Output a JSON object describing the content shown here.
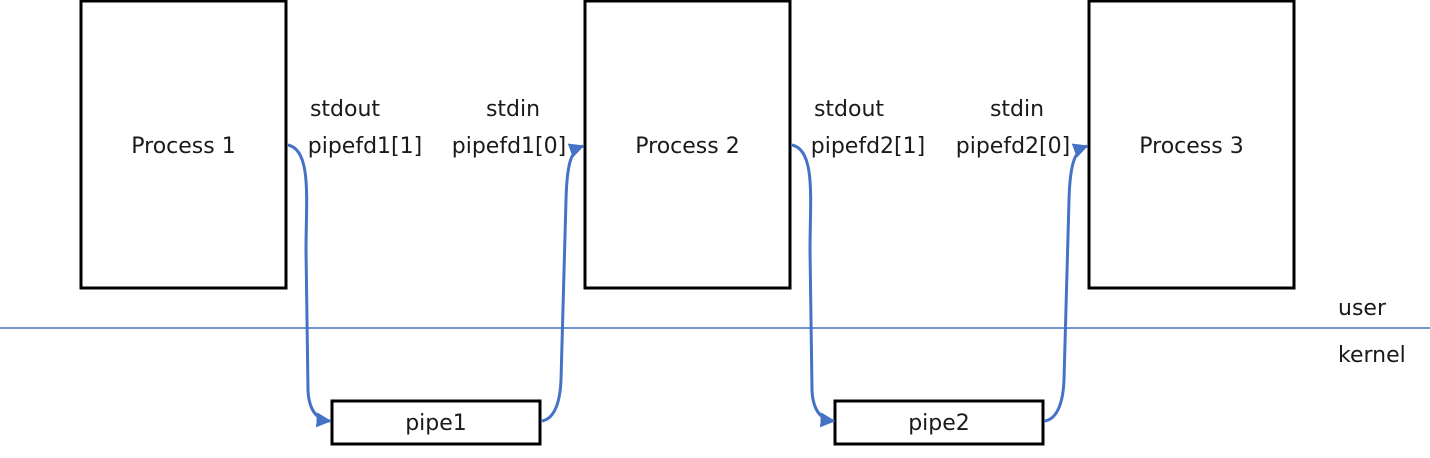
{
  "processes": [
    "Process 1",
    "Process 2",
    "Process 3"
  ],
  "pipes": [
    "pipe1",
    "pipe2"
  ],
  "fd_labels": {
    "pipe1_write_stream": "stdout",
    "pipe1_write_fd": "pipefd1[1]",
    "pipe1_read_stream": "stdin",
    "pipe1_read_fd": "pipefd1[0]",
    "pipe2_write_stream": "stdout",
    "pipe2_write_fd": "pipefd2[1]",
    "pipe2_read_stream": "stdin",
    "pipe2_read_fd": "pipefd2[0]"
  },
  "space_labels": {
    "user": "user",
    "kernel": "kernel"
  },
  "colors": {
    "arrow": "#4472c4",
    "divider": "#4472c4",
    "box_stroke": "#000000"
  }
}
